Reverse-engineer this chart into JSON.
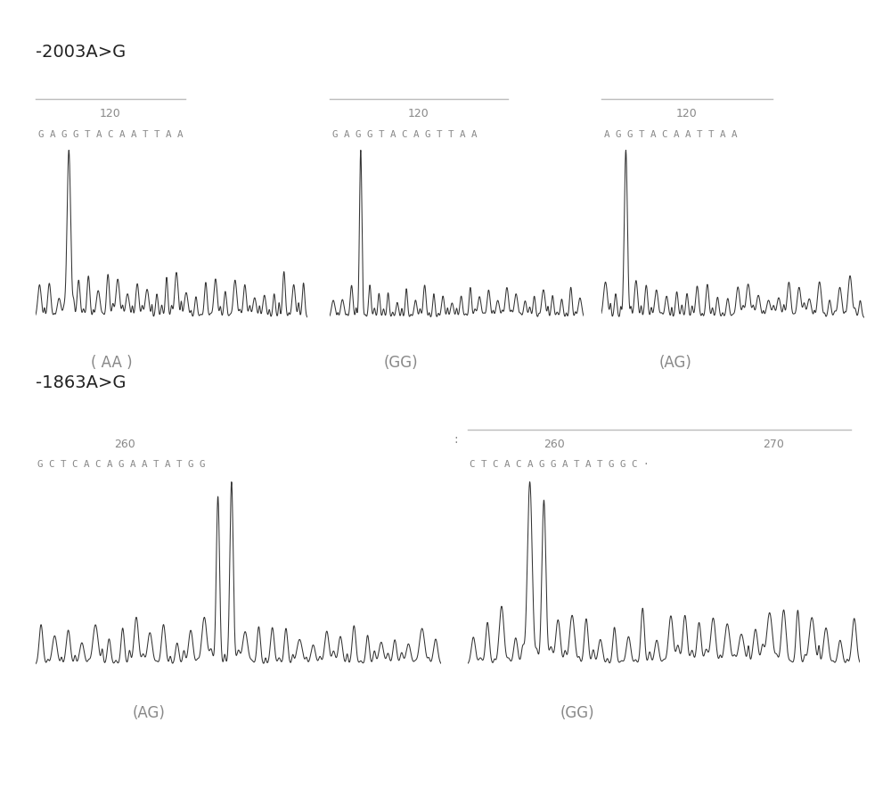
{
  "title1": "-2003A>G",
  "title2": "-1863A>G",
  "panel1_seq1": "G A G G T A C A A T T A A",
  "panel1_seq2": "G A G G T A C A G T T A A",
  "panel1_seq3": "A G G T A C A A T T A A",
  "panel1_label1": "120",
  "panel1_label2": "120",
  "panel1_label3": "120",
  "panel1_genotype1": "( AA )",
  "panel1_genotype2": "(GG)",
  "panel1_genotype3": "(AG)",
  "panel2_seq1": "G C T C A C A G A A T A T G G",
  "panel2_seq2": "C T C A C A G G A T A T G G C ·",
  "panel2_label1": "260",
  "panel2_label2": "260",
  "panel2_label3": "270",
  "panel2_genotype1": "(AG)",
  "panel2_genotype2": "(GG)",
  "bg_color": "#ffffff",
  "trace_color": "#333333",
  "text_color": "#888888",
  "title_color": "#222222",
  "line_color": "#bbbbbb"
}
